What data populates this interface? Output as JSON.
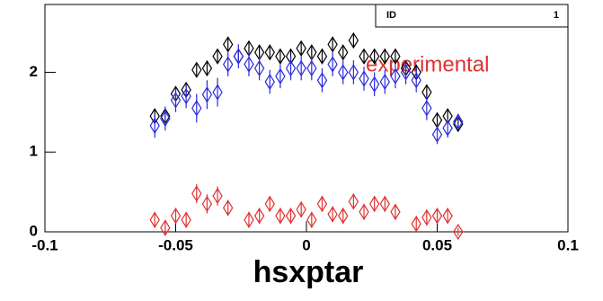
{
  "chart_data": {
    "type": "scatter",
    "x_label": "hsxptar",
    "stats": {
      "label": "ID",
      "value": "1"
    },
    "annotation": {
      "text": "experimental",
      "color": "#e03030"
    },
    "xlim": [
      -0.1,
      0.1
    ],
    "xticks": [
      -0.1,
      -0.05,
      0,
      0.05,
      0.1
    ],
    "ylim": [
      0,
      2.85
    ],
    "yticks": [
      0,
      1,
      2
    ],
    "x": [
      -0.058,
      -0.054,
      -0.05,
      -0.046,
      -0.042,
      -0.038,
      -0.034,
      -0.03,
      -0.026,
      -0.022,
      -0.018,
      -0.014,
      -0.01,
      -0.006,
      -0.002,
      0.002,
      0.006,
      0.01,
      0.014,
      0.018,
      0.022,
      0.026,
      0.03,
      0.034,
      0.038,
      0.042,
      0.046,
      0.05,
      0.054,
      0.058
    ],
    "series": [
      {
        "color": "#000000",
        "values": [
          1.45,
          1.45,
          1.73,
          1.78,
          2.03,
          2.05,
          2.2,
          2.35,
          2.2,
          2.3,
          2.25,
          2.25,
          2.2,
          2.2,
          2.3,
          2.25,
          2.2,
          2.35,
          2.25,
          2.4,
          2.2,
          2.2,
          2.2,
          2.2,
          2.05,
          2.0,
          1.75,
          1.4,
          1.45,
          1.35
        ],
        "errors": [
          0.08,
          0.08,
          0.08,
          0.08,
          0.08,
          0.08,
          0.08,
          0.08,
          0.08,
          0.08,
          0.08,
          0.08,
          0.08,
          0.08,
          0.08,
          0.08,
          0.08,
          0.08,
          0.08,
          0.08,
          0.08,
          0.08,
          0.08,
          0.08,
          0.08,
          0.08,
          0.08,
          0.08,
          0.08,
          0.08
        ]
      },
      {
        "color": "#2a2ae0",
        "values": [
          1.33,
          1.42,
          1.65,
          1.7,
          1.55,
          1.72,
          1.75,
          2.1,
          2.2,
          2.1,
          2.05,
          1.88,
          1.95,
          2.05,
          2.05,
          2.05,
          1.9,
          2.1,
          2.0,
          2.0,
          1.92,
          1.85,
          1.88,
          1.95,
          2.0,
          1.9,
          1.55,
          1.22,
          1.3,
          1.38
        ],
        "errors": [
          0.15,
          0.15,
          0.15,
          0.15,
          0.18,
          0.18,
          0.18,
          0.15,
          0.15,
          0.15,
          0.15,
          0.15,
          0.15,
          0.15,
          0.15,
          0.15,
          0.15,
          0.15,
          0.15,
          0.15,
          0.15,
          0.15,
          0.15,
          0.15,
          0.15,
          0.15,
          0.15,
          0.12,
          0.12,
          0.1
        ]
      },
      {
        "color": "#e03030",
        "values": [
          0.15,
          0.05,
          0.2,
          0.15,
          0.48,
          0.35,
          0.45,
          0.3,
          null,
          0.15,
          0.2,
          0.35,
          0.2,
          0.2,
          0.28,
          0.15,
          0.35,
          0.22,
          0.2,
          0.38,
          0.25,
          0.35,
          0.35,
          0.25,
          null,
          0.1,
          0.18,
          0.2,
          0.2,
          0.0
        ],
        "errors": [
          0.1,
          0.1,
          0.1,
          0.1,
          0.12,
          0.12,
          0.12,
          0.1,
          null,
          0.1,
          0.1,
          0.1,
          0.1,
          0.1,
          0.1,
          0.1,
          0.1,
          0.1,
          0.1,
          0.1,
          0.1,
          0.1,
          0.1,
          0.1,
          null,
          0.1,
          0.1,
          0.1,
          0.1,
          0.05
        ]
      }
    ]
  }
}
